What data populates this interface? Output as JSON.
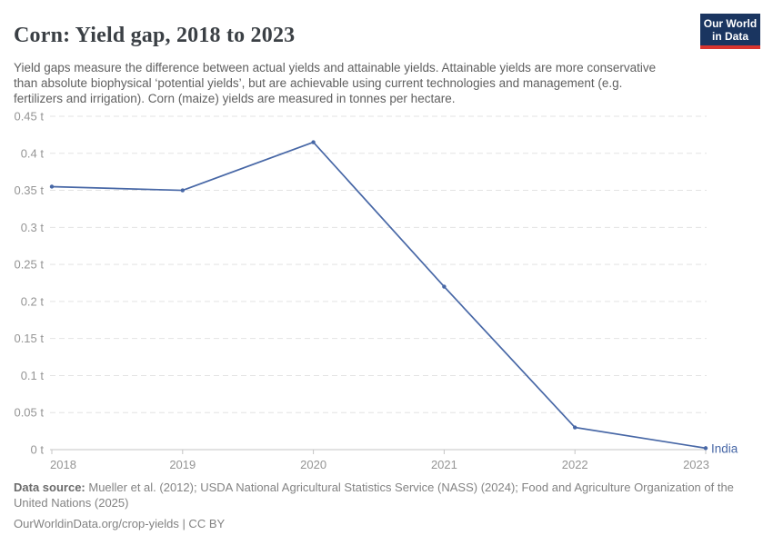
{
  "header": {
    "title": "Corn: Yield gap, 2018 to 2023",
    "subtitle": "Yield gaps measure the difference between actual yields and attainable yields. Attainable yields are more conservative than absolute biophysical ‘potential yields’, but are achievable using current technologies and management (e.g. fertilizers and irrigation). Corn (maize) yields are measured in tonnes per hectare.",
    "logo": {
      "line1": "Our World",
      "line2": "in Data",
      "bg_color": "#1a3560",
      "accent_color": "#d9352f"
    }
  },
  "chart_data": {
    "type": "line",
    "title": "Corn: Yield gap, 2018 to 2023",
    "x": [
      2018,
      2019,
      2020,
      2021,
      2022,
      2023
    ],
    "xtick_labels": [
      "2018",
      "2019",
      "2020",
      "2021",
      "2022",
      "2023"
    ],
    "series": [
      {
        "name": "India",
        "values": [
          0.355,
          0.35,
          0.415,
          0.22,
          0.03,
          0.002
        ]
      }
    ],
    "unit": "t",
    "ylim": [
      0,
      0.45
    ],
    "ytick_interval": 0.05,
    "ytick_labels": [
      "0 t",
      "0.05 t",
      "0.1 t",
      "0.15 t",
      "0.2 t",
      "0.25 t",
      "0.3 t",
      "0.35 t",
      "0.4 t",
      "0.45 t"
    ],
    "grid": "horizontal-dashed",
    "legend_position": "end-of-line-label",
    "line_color": "#4767a6"
  },
  "footer": {
    "source_label": "Data source:",
    "source_text": " Mueller et al. (2012); USDA National Agricultural Statistics Service (NASS) (2024); Food and Agriculture Organization of the United Nations (2025)",
    "license_text": "OurWorldinData.org/crop-yields | CC BY"
  }
}
